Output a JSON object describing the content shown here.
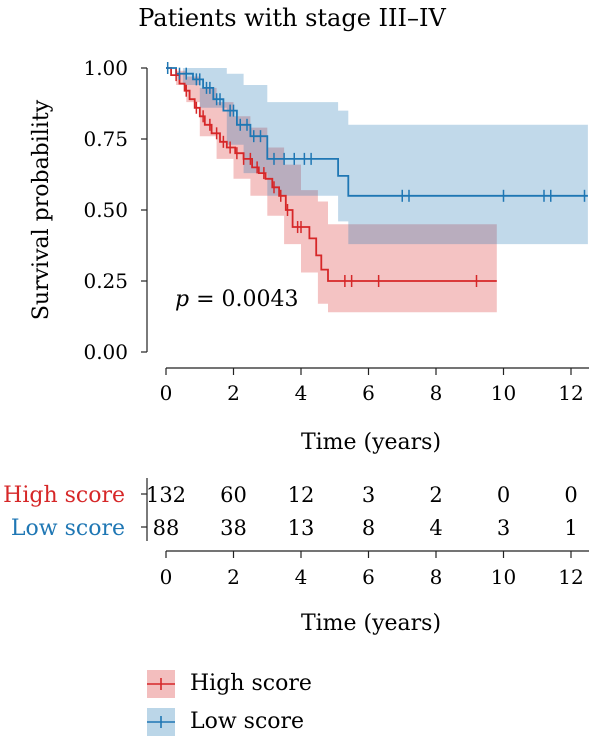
{
  "chart_data": {
    "type": "line",
    "subtype": "kaplan-meier",
    "title": "Patients with stage III–IV",
    "xlabel": "Time (years)",
    "ylabel": "Survival probability",
    "xlim": [
      -0.6,
      12.6
    ],
    "ylim": [
      -0.05,
      1.05
    ],
    "xticks": [
      0,
      2,
      4,
      6,
      8,
      10,
      12
    ],
    "yticks": [
      "0.00",
      "0.25",
      "0.50",
      "0.75",
      "1.00"
    ],
    "annotation": {
      "italic": "p",
      "text": " = 0.0043"
    },
    "grid": false,
    "legend_position": "bottom",
    "series": [
      {
        "name": "High score",
        "color": "#d62728",
        "steps": [
          [
            0,
            1.0
          ],
          [
            0.15,
            0.975
          ],
          [
            0.4,
            0.945
          ],
          [
            0.55,
            0.92
          ],
          [
            0.7,
            0.89
          ],
          [
            0.85,
            0.86
          ],
          [
            1.0,
            0.83
          ],
          [
            1.15,
            0.8
          ],
          [
            1.35,
            0.77
          ],
          [
            1.6,
            0.74
          ],
          [
            1.8,
            0.72
          ],
          [
            2.05,
            0.7
          ],
          [
            2.3,
            0.68
          ],
          [
            2.55,
            0.65
          ],
          [
            2.75,
            0.63
          ],
          [
            2.95,
            0.61
          ],
          [
            3.15,
            0.58
          ],
          [
            3.35,
            0.55
          ],
          [
            3.55,
            0.5
          ],
          [
            3.75,
            0.44
          ],
          [
            4.25,
            0.4
          ],
          [
            4.45,
            0.34
          ],
          [
            4.6,
            0.29
          ],
          [
            4.8,
            0.25
          ],
          [
            9.8,
            0.25
          ]
        ],
        "censor": [
          0.3,
          0.6,
          0.9,
          1.1,
          1.3,
          1.5,
          1.7,
          1.9,
          2.1,
          2.3,
          2.5,
          2.7,
          2.9,
          3.2,
          3.4,
          3.6,
          3.9,
          4.0,
          5.3,
          5.5,
          6.3,
          9.2
        ],
        "ci_upper": [
          [
            0,
            1.0
          ],
          [
            0.3,
            0.99
          ],
          [
            0.6,
            0.97
          ],
          [
            1.0,
            0.93
          ],
          [
            1.5,
            0.88
          ],
          [
            2.0,
            0.83
          ],
          [
            2.5,
            0.79
          ],
          [
            3.0,
            0.72
          ],
          [
            3.5,
            0.66
          ],
          [
            4.0,
            0.57
          ],
          [
            4.5,
            0.53
          ],
          [
            4.8,
            0.45
          ],
          [
            9.8,
            0.45
          ]
        ],
        "ci_lower": [
          [
            0,
            1.0
          ],
          [
            0.3,
            0.94
          ],
          [
            0.6,
            0.88
          ],
          [
            1.0,
            0.76
          ],
          [
            1.5,
            0.68
          ],
          [
            2.0,
            0.61
          ],
          [
            2.5,
            0.55
          ],
          [
            3.0,
            0.48
          ],
          [
            3.5,
            0.38
          ],
          [
            4.0,
            0.28
          ],
          [
            4.5,
            0.17
          ],
          [
            4.8,
            0.14
          ],
          [
            9.8,
            0.14
          ]
        ],
        "at_risk": [
          132,
          60,
          12,
          3,
          2,
          0,
          0
        ]
      },
      {
        "name": "Low score",
        "color": "#1f77b4",
        "steps": [
          [
            0,
            1.0
          ],
          [
            0.3,
            0.98
          ],
          [
            0.8,
            0.96
          ],
          [
            1.1,
            0.93
          ],
          [
            1.4,
            0.89
          ],
          [
            1.7,
            0.85
          ],
          [
            2.1,
            0.8
          ],
          [
            2.5,
            0.76
          ],
          [
            3.0,
            0.68
          ],
          [
            5.1,
            0.62
          ],
          [
            5.4,
            0.55
          ],
          [
            12.5,
            0.55
          ]
        ],
        "censor": [
          0.05,
          0.4,
          0.6,
          0.9,
          1.0,
          1.2,
          1.3,
          1.5,
          1.6,
          1.9,
          2.0,
          2.2,
          2.4,
          2.6,
          2.8,
          3.2,
          3.5,
          3.8,
          4.1,
          4.3,
          7.0,
          7.2,
          10.0,
          11.2,
          11.4,
          12.4
        ],
        "ci_upper": [
          [
            0,
            1.0
          ],
          [
            0.5,
            1.0
          ],
          [
            1.0,
            1.0
          ],
          [
            1.8,
            0.98
          ],
          [
            2.3,
            0.94
          ],
          [
            3.0,
            0.88
          ],
          [
            5.1,
            0.85
          ],
          [
            5.4,
            0.8
          ],
          [
            12.5,
            0.8
          ]
        ],
        "ci_lower": [
          [
            0,
            1.0
          ],
          [
            0.5,
            0.94
          ],
          [
            1.0,
            0.86
          ],
          [
            1.8,
            0.73
          ],
          [
            2.3,
            0.63
          ],
          [
            3.0,
            0.55
          ],
          [
            5.1,
            0.46
          ],
          [
            5.4,
            0.38
          ],
          [
            12.5,
            0.38
          ]
        ],
        "at_risk": [
          88,
          38,
          13,
          8,
          4,
          3,
          1
        ]
      }
    ]
  }
}
